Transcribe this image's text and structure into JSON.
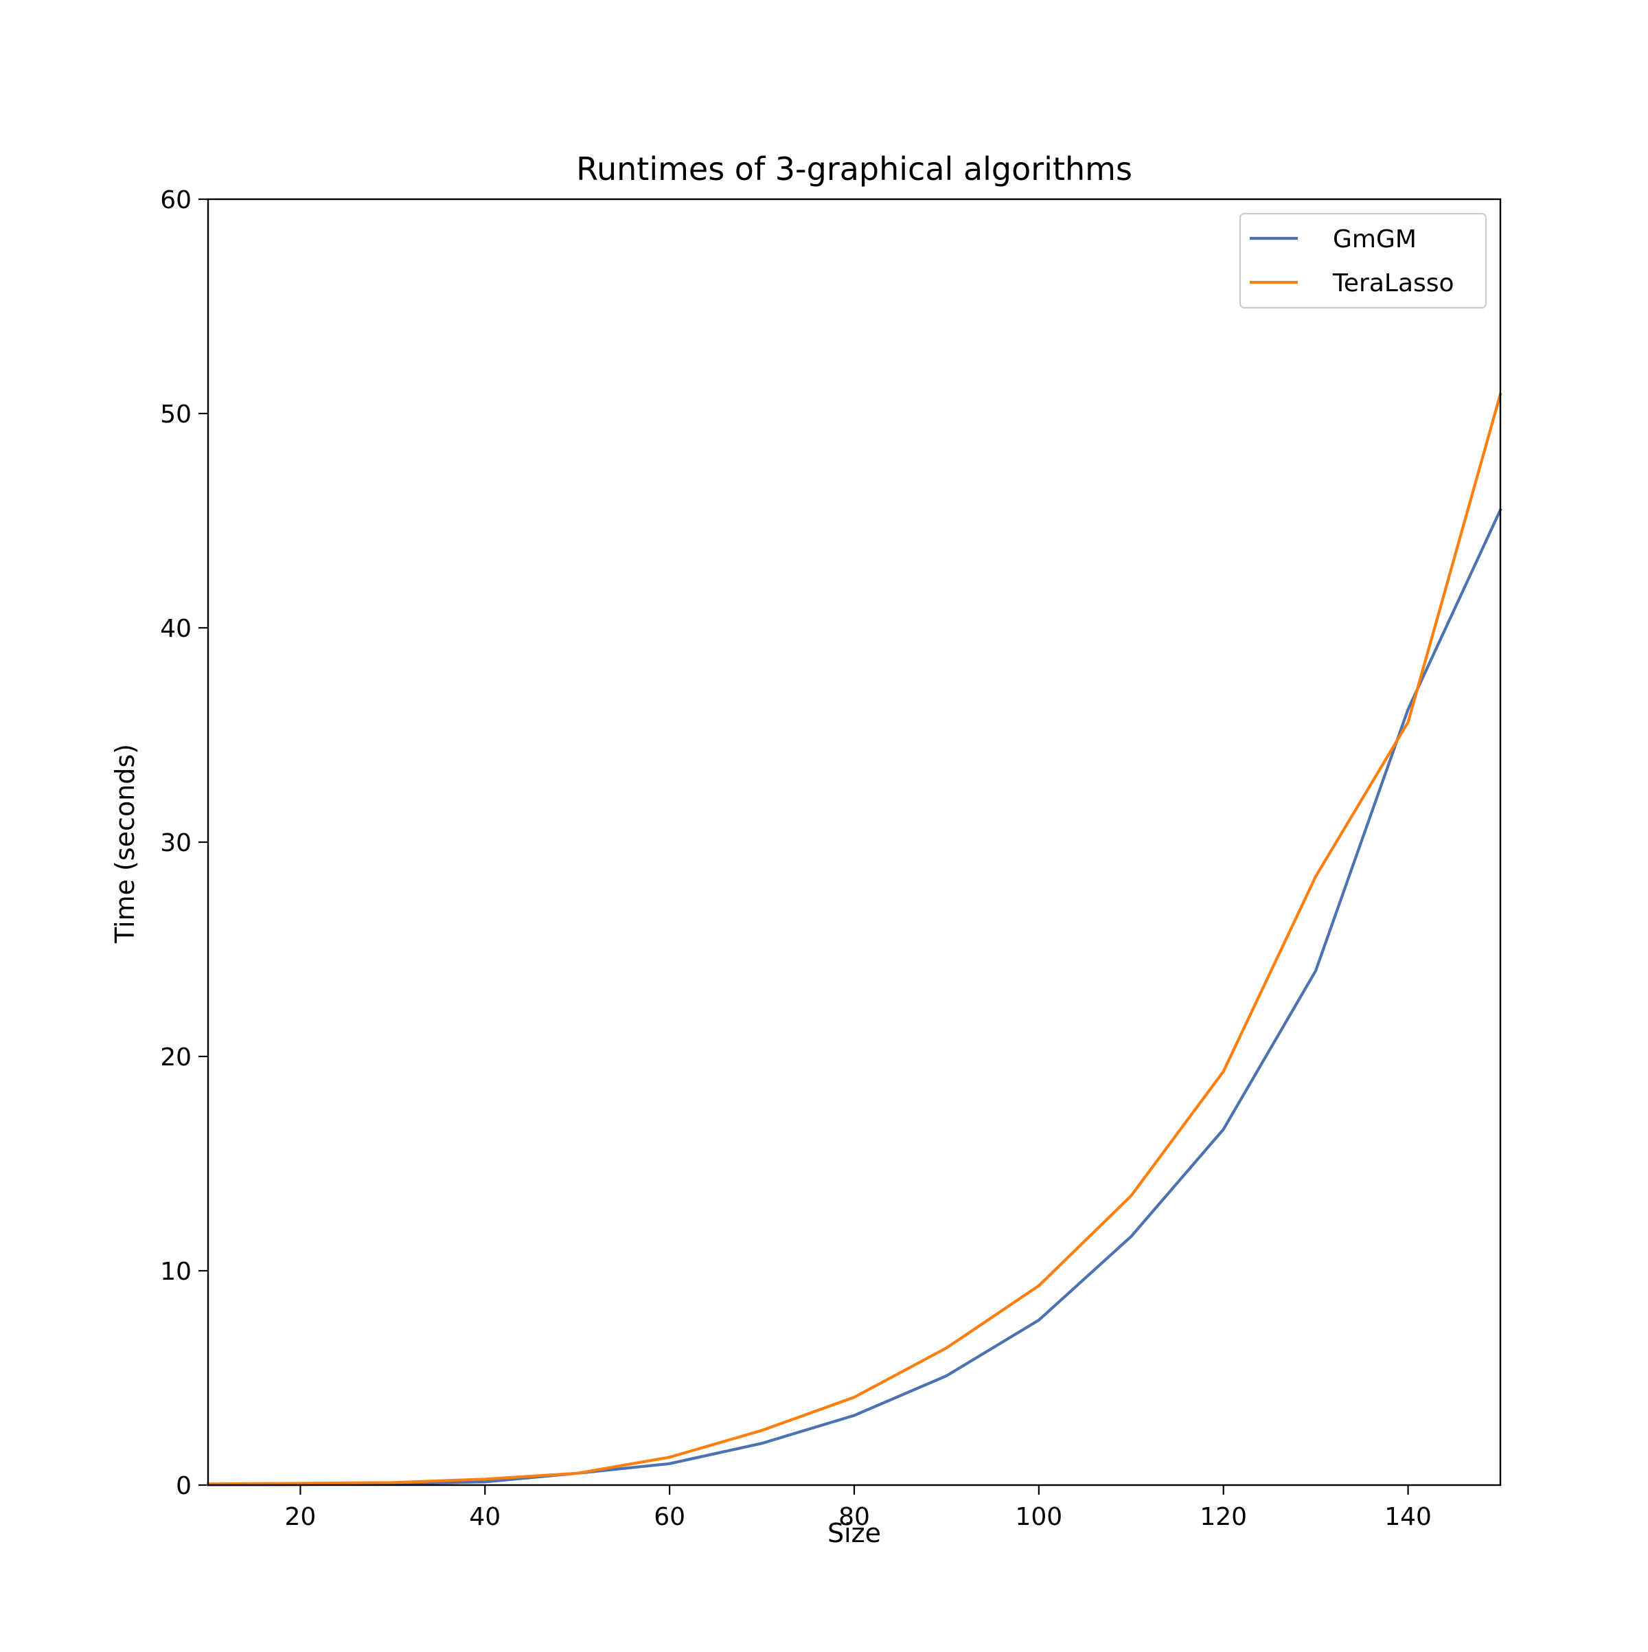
{
  "chart_data": {
    "type": "line",
    "title": "Runtimes of 3-graphical algorithms",
    "xlabel": "Size",
    "ylabel": "Time (seconds)",
    "xlim": [
      10,
      150
    ],
    "ylim": [
      0,
      60
    ],
    "xticks": [
      20,
      40,
      60,
      80,
      100,
      120,
      140
    ],
    "yticks": [
      0,
      10,
      20,
      30,
      40,
      50,
      60
    ],
    "grid": false,
    "legend": "top-right",
    "x": [
      10,
      20,
      30,
      40,
      50,
      60,
      70,
      80,
      90,
      100,
      110,
      120,
      130,
      140,
      150
    ],
    "series": [
      {
        "name": "GmGM",
        "color": "#4c72b0",
        "values": [
          0.02,
          0.03,
          0.06,
          0.15,
          0.55,
          1.0,
          1.95,
          3.25,
          5.1,
          7.7,
          11.6,
          16.6,
          24.0,
          36.2,
          45.5
        ]
      },
      {
        "name": "TeraLasso",
        "color": "#ff7f0e",
        "values": [
          0.05,
          0.08,
          0.12,
          0.28,
          0.55,
          1.3,
          2.55,
          4.1,
          6.4,
          9.3,
          13.5,
          19.3,
          28.4,
          35.6,
          50.9
        ]
      }
    ]
  }
}
